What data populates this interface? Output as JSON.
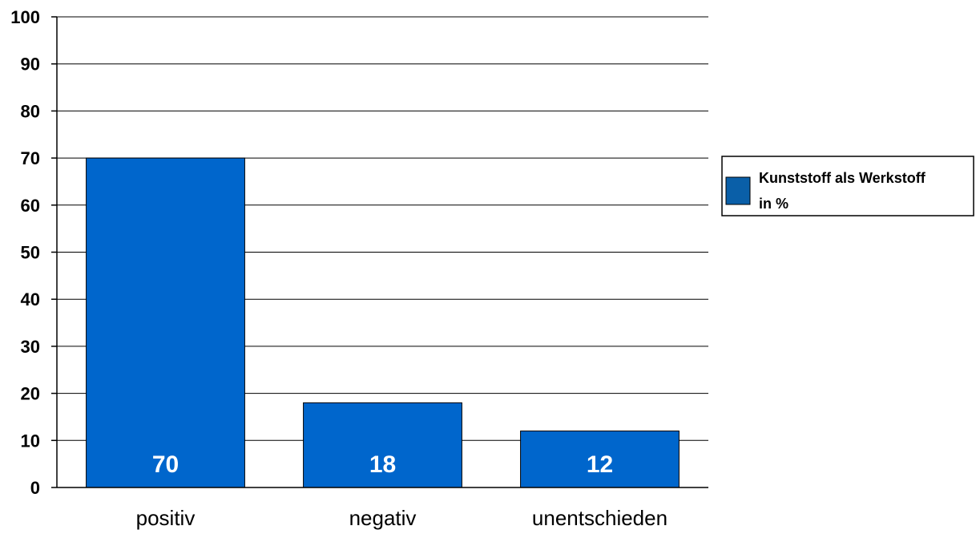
{
  "chart_data": {
    "type": "bar",
    "categories": [
      "positiv",
      "negativ",
      "unentschieden"
    ],
    "series": [
      {
        "name": "Kunststoff als Werkstoff in %",
        "values": [
          70,
          18,
          12
        ]
      }
    ],
    "data_labels": [
      "70",
      "18",
      "12"
    ],
    "title": "",
    "xlabel": "",
    "ylabel": "",
    "ylim": [
      0,
      100
    ],
    "yticks": [
      0,
      10,
      20,
      30,
      40,
      50,
      60,
      70,
      80,
      90,
      100
    ],
    "grid": true,
    "legend": {
      "position": "right",
      "lines": [
        "Kunststoff als Werkstoff",
        "in %"
      ]
    },
    "colors": {
      "bar": "#0066cc",
      "legend_swatch": "#0a5fa8",
      "grid": "#000000"
    }
  }
}
